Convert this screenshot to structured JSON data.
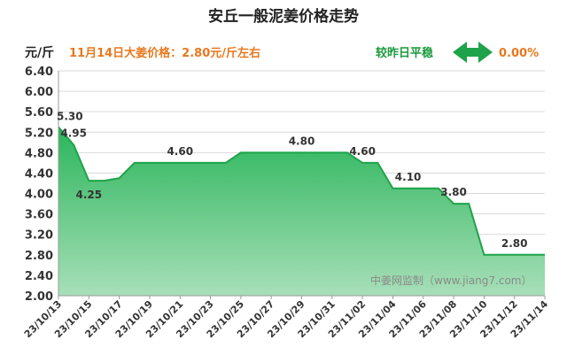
{
  "chart_data": {
    "type": "area",
    "title": "安丘一般泥姜价格走势",
    "ylabel": "元/斤",
    "price_note": "11月14日大姜价格：2.80元/斤左右",
    "compare_label": "较昨日平稳",
    "change_value": "0.00%",
    "watermark": "中姜网监制（www.jiang7.com）",
    "ylim": [
      2.0,
      6.4
    ],
    "ytick_step": 0.4,
    "grid": true,
    "colors": {
      "line": "#1fa34a",
      "fill_top": "#2bb55b",
      "fill_bottom": "#a7dfb8",
      "arrow": "#1fa34a"
    },
    "x_tick_labels": [
      "23/10/13",
      "23/10/15",
      "23/10/17",
      "23/10/19",
      "23/10/21",
      "23/10/23",
      "23/10/25",
      "23/10/27",
      "23/10/29",
      "23/10/31",
      "23/11/02",
      "23/11/04",
      "23/11/06",
      "23/11/08",
      "23/11/10",
      "23/11/12",
      "23/11/14"
    ],
    "points": [
      {
        "x": "23/10/13",
        "y": 5.3,
        "label": "5.30"
      },
      {
        "x": "23/10/14",
        "y": 4.95,
        "label": "4.95"
      },
      {
        "x": "23/10/15",
        "y": 4.25,
        "label": "4.25"
      },
      {
        "x": "23/10/16",
        "y": 4.25
      },
      {
        "x": "23/10/17",
        "y": 4.3
      },
      {
        "x": "23/10/18",
        "y": 4.6
      },
      {
        "x": "23/10/19",
        "y": 4.6
      },
      {
        "x": "23/10/20",
        "y": 4.6
      },
      {
        "x": "23/10/21",
        "y": 4.6,
        "label": "4.60"
      },
      {
        "x": "23/10/22",
        "y": 4.6
      },
      {
        "x": "23/10/23",
        "y": 4.6
      },
      {
        "x": "23/10/24",
        "y": 4.6
      },
      {
        "x": "23/10/25",
        "y": 4.8
      },
      {
        "x": "23/10/26",
        "y": 4.8
      },
      {
        "x": "23/10/27",
        "y": 4.8
      },
      {
        "x": "23/10/28",
        "y": 4.8
      },
      {
        "x": "23/10/29",
        "y": 4.8,
        "label": "4.80"
      },
      {
        "x": "23/10/30",
        "y": 4.8
      },
      {
        "x": "23/10/31",
        "y": 4.8
      },
      {
        "x": "23/11/01",
        "y": 4.8
      },
      {
        "x": "23/11/02",
        "y": 4.6,
        "label": "4.60"
      },
      {
        "x": "23/11/03",
        "y": 4.6
      },
      {
        "x": "23/11/04",
        "y": 4.1
      },
      {
        "x": "23/11/05",
        "y": 4.1,
        "label": "4.10"
      },
      {
        "x": "23/11/06",
        "y": 4.1
      },
      {
        "x": "23/11/07",
        "y": 4.1
      },
      {
        "x": "23/11/08",
        "y": 3.8,
        "label": "3.80"
      },
      {
        "x": "23/11/09",
        "y": 3.8
      },
      {
        "x": "23/11/10",
        "y": 2.8
      },
      {
        "x": "23/11/11",
        "y": 2.8
      },
      {
        "x": "23/11/12",
        "y": 2.8,
        "label": "2.80"
      },
      {
        "x": "23/11/13",
        "y": 2.8
      },
      {
        "x": "23/11/14",
        "y": 2.8
      }
    ]
  }
}
